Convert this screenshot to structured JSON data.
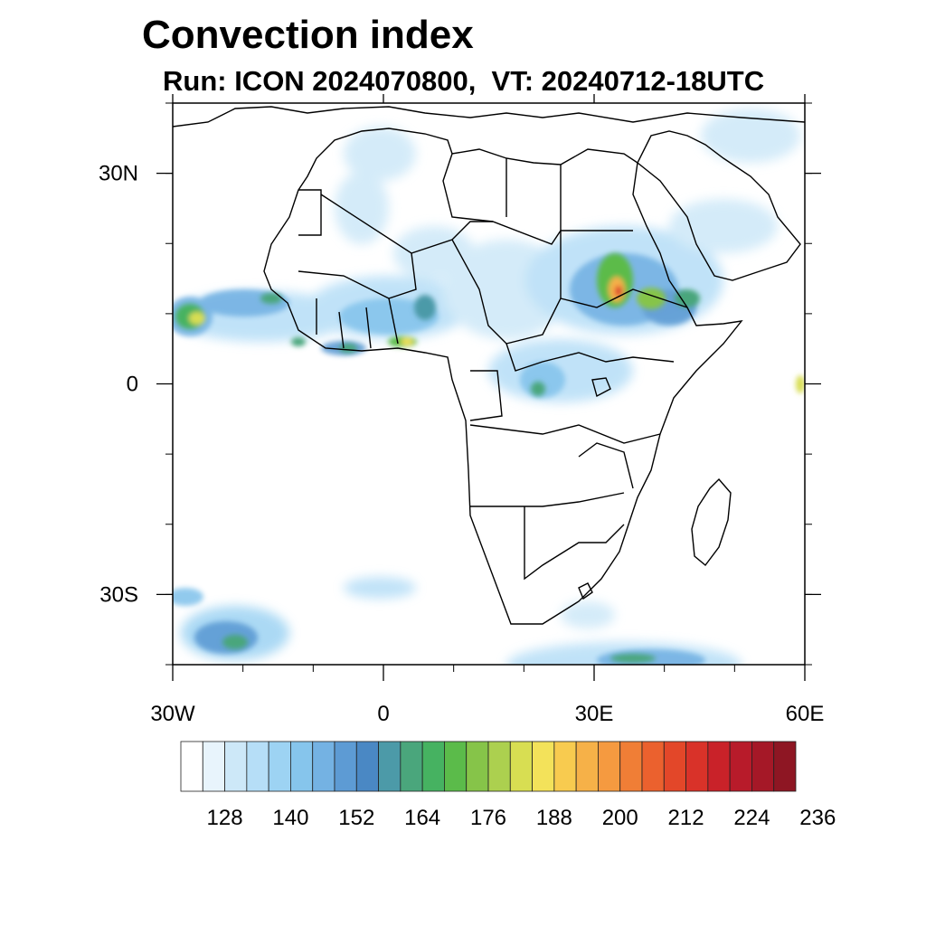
{
  "title": "Convection index",
  "subtitle": "Run: ICON 2024070800,  VT: 20240712-18UTC",
  "map": {
    "lon_range": [
      -30,
      60
    ],
    "lat_range": [
      -40,
      40
    ],
    "lat_ticks": [
      {
        "value": 30,
        "label": "30N"
      },
      {
        "value": 0,
        "label": "0"
      },
      {
        "value": -30,
        "label": "30S"
      }
    ],
    "lon_ticks": [
      {
        "value": -30,
        "label": "30W"
      },
      {
        "value": 0,
        "label": "0"
      },
      {
        "value": 30,
        "label": "30E"
      },
      {
        "value": 60,
        "label": "60E"
      }
    ]
  },
  "colorbar": {
    "colors": [
      "#ffffff",
      "#e8f4fc",
      "#cde8f8",
      "#b6def7",
      "#9dd3f3",
      "#86c5ec",
      "#74b2e3",
      "#5d9bd4",
      "#4a88c4",
      "#4c9aa8",
      "#4aa67c",
      "#46b261",
      "#5bbb4a",
      "#86c449",
      "#acd04f",
      "#d8de52",
      "#f3e25a",
      "#f8cb4f",
      "#f6b148",
      "#f59a40",
      "#f07e36",
      "#eb612e",
      "#e34729",
      "#d93229",
      "#c92229",
      "#b81b2a",
      "#a51827",
      "#8e1623"
    ],
    "labels": [
      "128",
      "140",
      "152",
      "164",
      "176",
      "188",
      "200",
      "212",
      "224",
      "236"
    ],
    "label_start_box": 2,
    "label_every": 3
  }
}
